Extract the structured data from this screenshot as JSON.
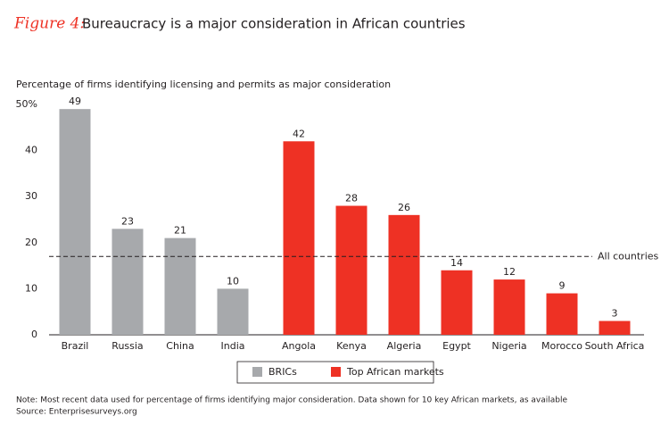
{
  "chart_data": {
    "type": "bar",
    "figure_label": "Figure 4:",
    "title": "Bureaucracy is a major consideration in African countries",
    "subtitle": "Percentage of firms identifying licensing and permits as major consideration",
    "categories": [
      "Brazil",
      "Russia",
      "China",
      "India",
      "Angola",
      "Kenya",
      "Algeria",
      "Egypt",
      "Nigeria",
      "Morocco",
      "South Africa"
    ],
    "series": [
      {
        "name": "BRICs",
        "color": "#a7a9ac",
        "values": [
          49,
          23,
          21,
          10,
          null,
          null,
          null,
          null,
          null,
          null,
          null
        ]
      },
      {
        "name": "Top African markets",
        "color": "#ee3124",
        "values": [
          null,
          null,
          null,
          null,
          42,
          28,
          26,
          14,
          12,
          9,
          3
        ]
      }
    ],
    "ylim": [
      0,
      50
    ],
    "yticks": [
      0,
      10,
      20,
      30,
      40,
      {
        "value": 50,
        "label": "50%"
      }
    ],
    "reference_line": {
      "value": 17,
      "label": "All countries"
    },
    "note": "Note: Most recent data used for percentage of firms identifying major consideration. Data shown for 10 key African markets, as available",
    "source": "Source: Enterprisesurveys.org"
  }
}
